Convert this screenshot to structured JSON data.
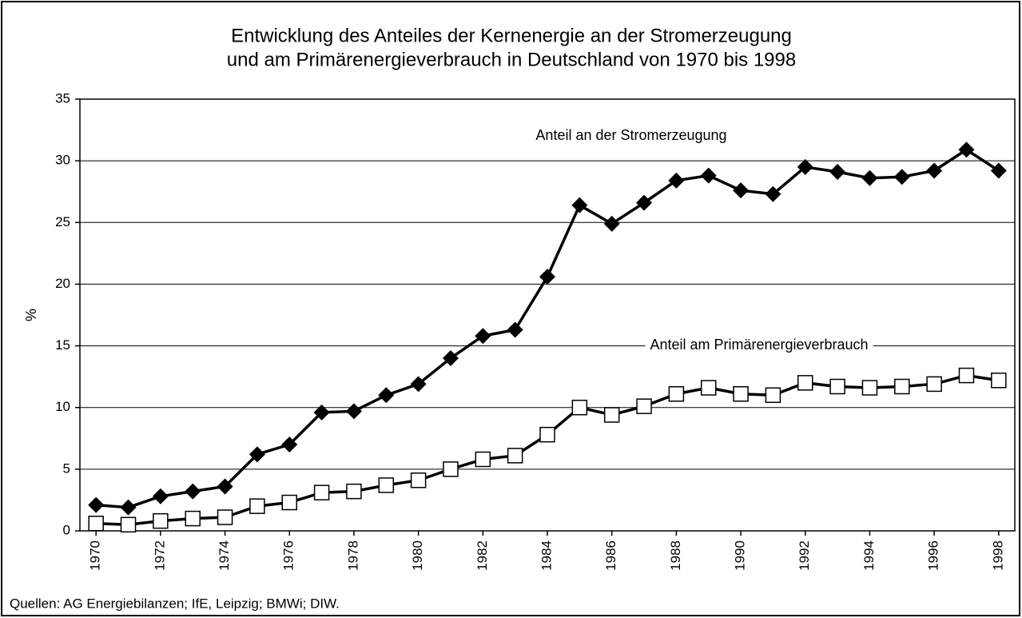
{
  "chart_data": {
    "type": "line",
    "title": [
      "Entwicklung des Anteiles der Kernenergie an der Stromerzeugung",
      "und am Primärenergieverbrauch in Deutschland von 1970 bis 1998"
    ],
    "y_label": "%",
    "source": "Quellen: AG Energiebilanzen; IfE, Leipzig; BMWi; DIW.",
    "x": [
      1970,
      1971,
      1972,
      1973,
      1974,
      1975,
      1976,
      1977,
      1978,
      1979,
      1980,
      1981,
      1982,
      1983,
      1984,
      1985,
      1986,
      1987,
      1988,
      1989,
      1990,
      1991,
      1992,
      1993,
      1994,
      1995,
      1996,
      1997,
      1998
    ],
    "xlim": [
      1969.5,
      1998.5
    ],
    "xticks": [
      1970,
      1972,
      1974,
      1976,
      1978,
      1980,
      1982,
      1984,
      1986,
      1988,
      1990,
      1992,
      1994,
      1996,
      1998
    ],
    "ylim": [
      0,
      35
    ],
    "yticks": [
      0,
      5,
      10,
      15,
      20,
      25,
      30,
      35
    ],
    "grid": true,
    "series": [
      {
        "name": "Anteil an der Stromerzeugung",
        "color": "#000000",
        "marker": "diamond",
        "values": [
          2.1,
          1.9,
          2.8,
          3.2,
          3.6,
          6.2,
          7.0,
          9.6,
          9.7,
          11.0,
          11.9,
          14.0,
          15.8,
          16.3,
          20.6,
          26.4,
          24.9,
          26.6,
          28.4,
          28.8,
          27.6,
          27.3,
          29.5,
          29.1,
          28.6,
          28.7,
          29.2,
          30.9,
          29.2
        ]
      },
      {
        "name": "Anteil am Primärenergieverbrauch",
        "color": "#000000",
        "marker": "square",
        "values": [
          0.6,
          0.5,
          0.8,
          1.0,
          1.1,
          2.0,
          2.3,
          3.1,
          3.2,
          3.7,
          4.1,
          5.0,
          5.8,
          6.1,
          7.8,
          10.0,
          9.4,
          10.1,
          11.1,
          11.6,
          11.1,
          11.0,
          12.0,
          11.7,
          11.6,
          11.7,
          11.9,
          12.6,
          12.2
        ]
      }
    ]
  }
}
